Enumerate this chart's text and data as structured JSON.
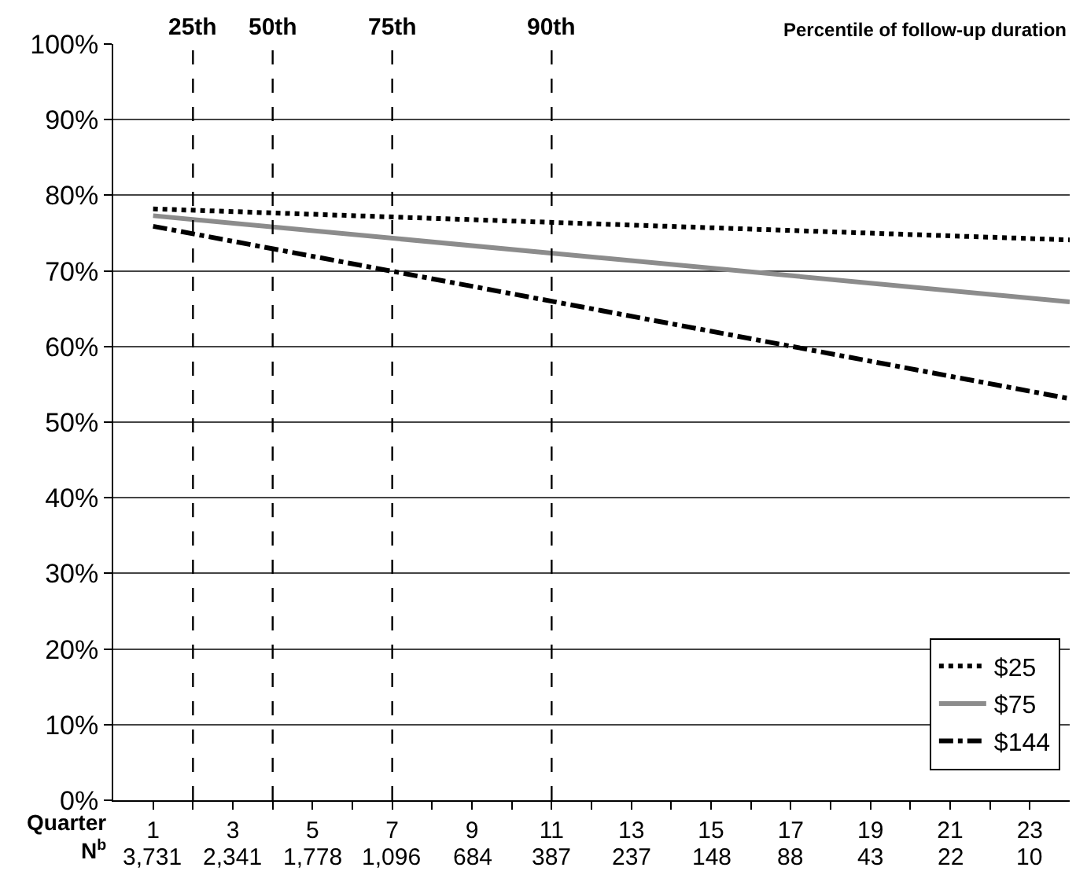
{
  "chart_data": {
    "type": "line",
    "xlabel": "Quarter\nN$^{b}$",
    "x": [
      1,
      24
    ],
    "series": [
      {
        "name": "$25",
        "color": "#000000",
        "line_style": "dotted",
        "values": [
          78.2,
          74.1
        ]
      },
      {
        "name": "$75",
        "color": "#8c8c8c",
        "line_style": "solid",
        "values": [
          77.3,
          65.9
        ]
      },
      {
        "name": "$144",
        "color": "#000000",
        "line_style": "dashdot",
        "values": [
          75.9,
          53.1
        ]
      }
    ],
    "xlim": [
      0,
      24
    ],
    "xticks": [
      1,
      {
        "value": 2,
        "label": null
      },
      3,
      {
        "value": 4,
        "label": null
      },
      5,
      {
        "value": 6,
        "label": null
      },
      7,
      {
        "value": 8,
        "label": null
      },
      9,
      {
        "value": 10,
        "label": null
      },
      11,
      {
        "value": 12,
        "label": null
      },
      13,
      {
        "value": 14,
        "label": null
      },
      15,
      {
        "value": 16,
        "label": null
      },
      17,
      {
        "value": 18,
        "label": null
      },
      19,
      {
        "value": 20,
        "label": null
      },
      21,
      {
        "value": 22,
        "label": null
      },
      23
    ],
    "ylim": [
      0,
      100
    ],
    "yticks": [
      {
        "value": 0,
        "label": "0%"
      },
      {
        "value": 10,
        "label": "10%"
      },
      {
        "value": 20,
        "label": "20%"
      },
      {
        "value": 30,
        "label": "30%"
      },
      {
        "value": 40,
        "label": "40%"
      },
      {
        "value": 50,
        "label": "50%"
      },
      {
        "value": 60,
        "label": "60%"
      },
      {
        "value": 70,
        "label": "70%"
      },
      {
        "value": 80,
        "label": "80%"
      },
      {
        "value": 90,
        "label": "90%"
      },
      {
        "value": 100,
        "label": "100%"
      }
    ],
    "ref_lines": [
      {
        "axis": "x",
        "value": 2,
        "label": "25th",
        "color": "#000000",
        "line_style": "dashed"
      },
      {
        "axis": "x",
        "value": 4,
        "label": "50th",
        "color": "#000000",
        "line_style": "dashed"
      },
      {
        "axis": "x",
        "value": 7,
        "label": "75th",
        "color": "#000000",
        "line_style": "dashed"
      },
      {
        "axis": "x",
        "value": 11,
        "label": "90th",
        "color": "#000000",
        "line_style": "dashed"
      }
    ],
    "annotations": [
      "Percentile of follow-up duration",
      "3,731",
      "2,341",
      "1,778",
      "1,096",
      "684",
      "387",
      "237",
      "148",
      "88",
      "43",
      "22",
      "10"
    ],
    "grid": "y",
    "legend": "bottom right",
    "marker": "none"
  }
}
